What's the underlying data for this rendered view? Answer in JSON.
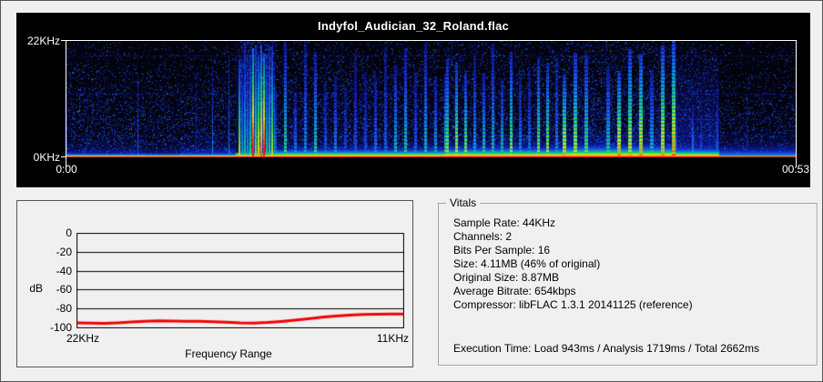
{
  "window": {
    "bg": "#f0f0f0",
    "border": "#565656"
  },
  "spectrogram": {
    "title": "Indyfol_Audician_32_Roland.flac",
    "freq_top": "22KHz",
    "freq_bottom": "0KHz",
    "time_start": "0:00",
    "time_end": "00:53",
    "panel_bg": "#000000",
    "plot_border": "#ffffff",
    "h_line_rows": [
      16,
      58,
      86,
      104
    ],
    "colormap": [
      [
        0,
        [
          3,
          3,
          12
        ]
      ],
      [
        0.14,
        [
          8,
          10,
          70
        ]
      ],
      [
        0.28,
        [
          12,
          25,
          160
        ]
      ],
      [
        0.42,
        [
          25,
          80,
          230
        ]
      ],
      [
        0.54,
        [
          0,
          170,
          190
        ]
      ],
      [
        0.64,
        [
          40,
          210,
          90
        ]
      ],
      [
        0.74,
        [
          170,
          225,
          40
        ]
      ],
      [
        0.82,
        [
          235,
          215,
          25
        ]
      ],
      [
        0.9,
        [
          245,
          130,
          20
        ]
      ],
      [
        1,
        [
          255,
          25,
          25
        ]
      ]
    ],
    "segments": [
      {
        "name": "intro-a",
        "from": 0,
        "to": 0.105,
        "band": 3.2,
        "band2": [
          0.5,
          7
        ],
        "noise": 0.3,
        "fade": 0.85,
        "stripes": {
          "period": 26,
          "w": 1,
          "hMin": 0.45,
          "hMax": 0.9,
          "int": 0.4,
          "prob": 0.55
        }
      },
      {
        "name": "intro-b",
        "from": 0.105,
        "to": 0.155,
        "band": 3.0,
        "band2": [
          0.45,
          6
        ],
        "noise": 0.26,
        "fade": 0.9,
        "stripes": {
          "period": 22,
          "w": 1,
          "hMin": 0.4,
          "hMax": 0.8,
          "int": 0.36,
          "prob": 0.5
        }
      },
      {
        "name": "intro-c",
        "from": 0.155,
        "to": 0.232,
        "band": 3.4,
        "band2": [
          0.55,
          8
        ],
        "noise": 0.3,
        "fade": 0.85,
        "stripes": {
          "period": 18,
          "w": 1,
          "hMin": 0.5,
          "hMax": 0.95,
          "int": 0.42,
          "prob": 0.6
        }
      },
      {
        "name": "burst",
        "from": 0.232,
        "to": 0.285,
        "band": 6,
        "band2": [
          0.6,
          10
        ],
        "noise": 0.5,
        "fade": 0.3,
        "pregap": true,
        "haze": 0.42,
        "hot": [
          0.25,
          0.272,
          1.3
        ],
        "stripes": {
          "period": 3,
          "w": 2,
          "hMin": 0.8,
          "hMax": 1.0,
          "int": 0.66,
          "prob": 1
        }
      },
      {
        "name": "verse-1",
        "from": 0.285,
        "to": 0.52,
        "band": 7,
        "band2": [
          0.5,
          9
        ],
        "noise": 0.32,
        "fade": 0.75,
        "harm": true,
        "stripes": {
          "period": 11,
          "w": 3,
          "hMin": 0.55,
          "hMax": 1.0,
          "int": 0.52,
          "prob": 0.95
        }
      },
      {
        "name": "verse-2",
        "from": 0.52,
        "to": 0.68,
        "band": 8.5,
        "band2": [
          0.55,
          10
        ],
        "noise": 0.35,
        "fade": 0.7,
        "harm": true,
        "stripes": {
          "period": 10,
          "w": 3,
          "hMin": 0.6,
          "hMax": 1.0,
          "int": 0.6,
          "prob": 0.95
        }
      },
      {
        "name": "climax",
        "from": 0.68,
        "to": 0.835,
        "band": 10,
        "band2": [
          0.6,
          12
        ],
        "noise": 0.38,
        "fade": 0.65,
        "harm": true,
        "stripes": {
          "period": 12,
          "w": 4,
          "hMin": 0.7,
          "hMax": 1.0,
          "int": 0.7,
          "prob": 0.95
        }
      },
      {
        "name": "bridge",
        "from": 0.835,
        "to": 0.895,
        "band": 8,
        "band2": [
          0.55,
          16
        ],
        "noise": 0.3,
        "fade": 0.7,
        "haze": 0.3,
        "stripes": {
          "period": 9,
          "w": 2,
          "hMin": 0.3,
          "hMax": 0.75,
          "int": 0.45,
          "prob": 0.8
        }
      },
      {
        "name": "outro",
        "from": 0.895,
        "to": 1.001,
        "band": 2.2,
        "band2": [
          0.62,
          9
        ],
        "noise": 0.22,
        "fade": 0.9,
        "stripes": {
          "period": 30,
          "w": 1,
          "hMin": 0.3,
          "hMax": 0.7,
          "int": 0.3,
          "prob": 0.4
        }
      }
    ]
  },
  "chart_data": {
    "type": "line",
    "title": "",
    "xlabel": "Frequency Range",
    "ylabel": "dB",
    "x_tick_labels": [
      "22KHz",
      "11KHz"
    ],
    "x_range": [
      "22KHz",
      "11KHz"
    ],
    "y_ticks": [
      0,
      -20,
      -40,
      -60,
      -80,
      -100
    ],
    "ylim": [
      -100,
      0
    ],
    "grid": true,
    "line_color": "#f40000",
    "series": [
      {
        "name": "level-vs-frequency",
        "values": [
          -94.6,
          -95.0,
          -95.1,
          -94.6,
          -93.8,
          -93.0,
          -92.6,
          -92.9,
          -93.0,
          -93.1,
          -93.4,
          -94.0,
          -94.7,
          -94.9,
          -94.3,
          -93.2,
          -91.8,
          -90.3,
          -88.8,
          -87.5,
          -86.5,
          -85.9,
          -85.5,
          -85.3,
          -85.4
        ]
      }
    ]
  },
  "vitals": {
    "title": "Vitals",
    "lines": [
      "Sample Rate: 44KHz",
      "Channels: 2",
      "Bits Per Sample: 16",
      "Size: 4.11MB (46% of original)",
      "Original Size: 8.87MB",
      "Average Bitrate: 654kbps",
      "Compressor: libFLAC 1.3.1 20141125 (reference)"
    ],
    "execution": "Execution Time: Load 943ms / Analysis 1719ms / Total 2662ms"
  }
}
